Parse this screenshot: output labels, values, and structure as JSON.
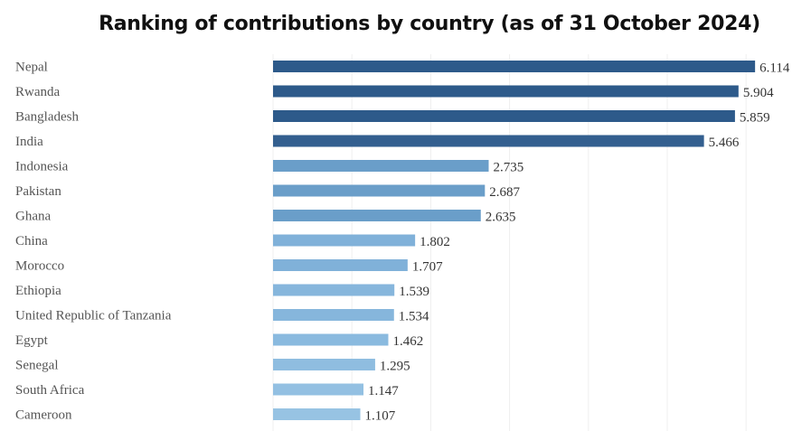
{
  "chart_data": {
    "type": "bar",
    "orientation": "horizontal",
    "title": "Ranking of contributions by country (as of  31 October 2024)",
    "xlabel": "",
    "ylabel": "",
    "xlim": [
      0,
      6
    ],
    "grid": true,
    "categories": [
      "Nepal",
      "Rwanda",
      "Bangladesh",
      "India",
      "Indonesia",
      "Pakistan",
      "Ghana",
      "China",
      "Morocco",
      "Ethiopia",
      "United Republic of Tanzania",
      "Egypt",
      "Senegal",
      "South Africa",
      "Cameroon"
    ],
    "values": [
      6.114,
      5.904,
      5.859,
      5.466,
      2.735,
      2.687,
      2.635,
      1.802,
      1.707,
      1.539,
      1.534,
      1.462,
      1.295,
      1.147,
      1.107
    ],
    "value_labels": [
      "6.114",
      "5.904",
      "5.859",
      "5.466",
      "2.735",
      "2.687",
      "2.635",
      "1.802",
      "1.707",
      "1.539",
      "1.534",
      "1.462",
      "1.295",
      "1.147",
      "1.107"
    ],
    "colors": [
      "#2d5a8a",
      "#2d5a8a",
      "#2d5a8a",
      "#335f8f",
      "#6a9ec9",
      "#6a9ec9",
      "#6a9ec9",
      "#80b1d9",
      "#80b1d9",
      "#86b6dc",
      "#86b6dc",
      "#8abadf",
      "#8fbde0",
      "#93c0e2",
      "#97c3e3"
    ]
  }
}
